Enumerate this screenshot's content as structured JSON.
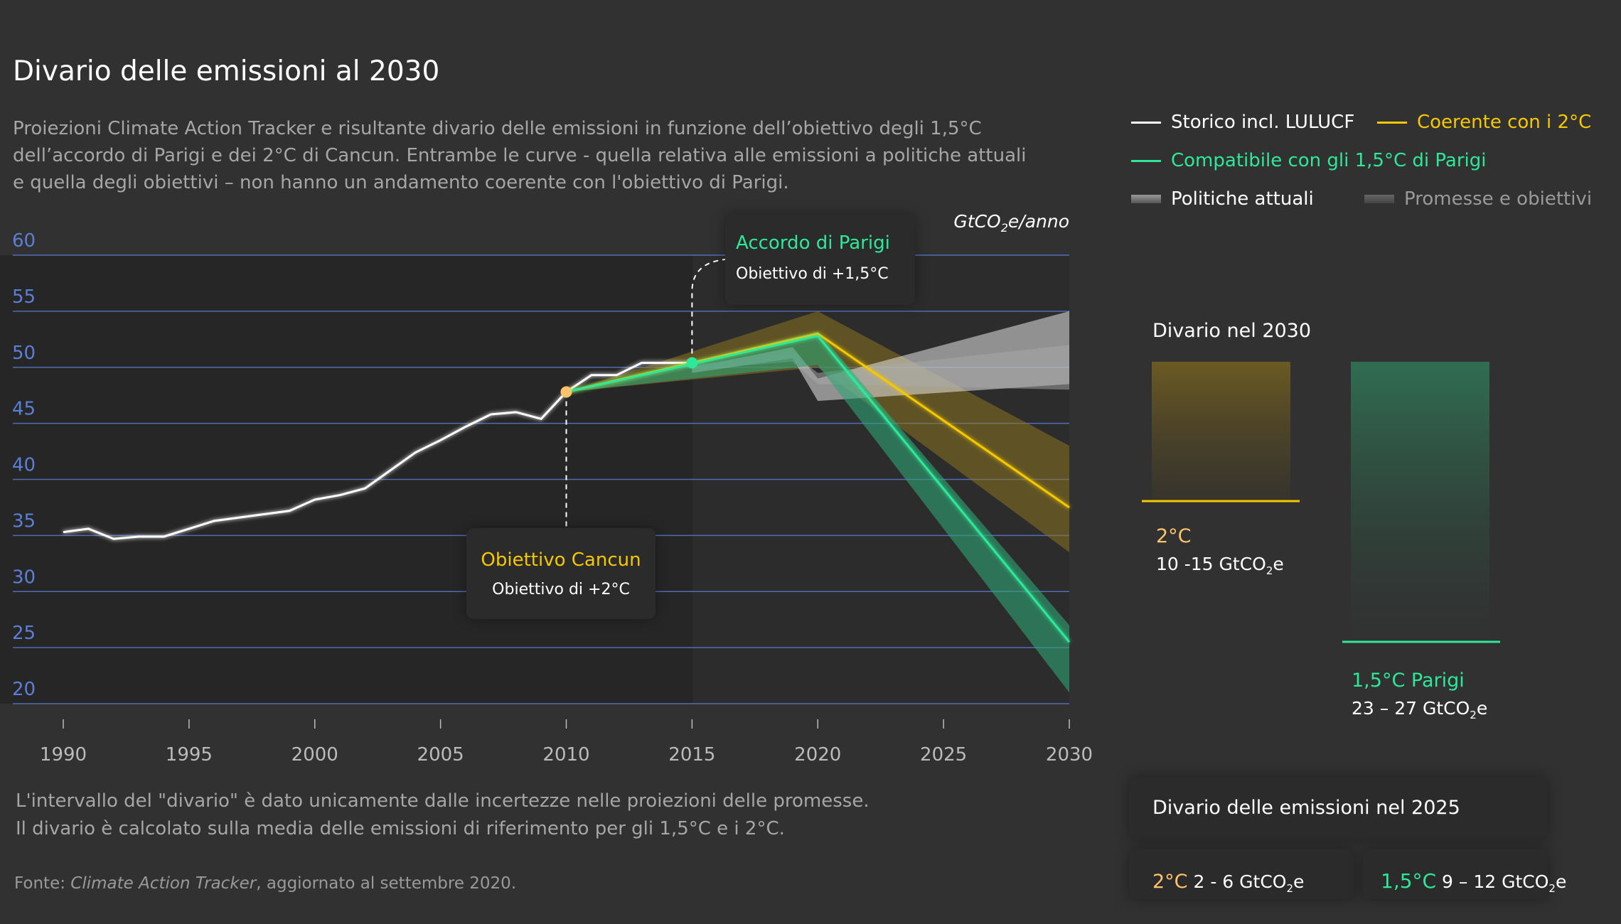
{
  "header": {
    "title": "Divario delle emissioni al 2030",
    "subtitle": [
      "Proiezioni Climate Action Tracker e risultante divario delle emissioni in funzione dell’obiettivo degli 1,5°C",
      "dell’accordo di Parigi e dei 2°C di Cancun. Entrambe le curve - quella relativa alle emissioni a politiche attuali",
      "e quella degli obiettivi – non hanno un andamento coerente con l'obiettivo di Parigi."
    ]
  },
  "legend": {
    "historic": "Storico incl. LULUCF",
    "two_deg": "Coerente con i 2°C",
    "one_five": "Compatibile con gli 1,5°C di Parigi",
    "current": "Politiche attuali",
    "pledges": "Promesse e obiettivi"
  },
  "colors": {
    "historic": "#ffffff",
    "two_deg": "#f5c800",
    "one_five": "#2ee89a",
    "axis": "#5b7fd6",
    "dot_2": "#ffc46b"
  },
  "chart_data": {
    "type": "line",
    "unit": "GtCO₂e/anno",
    "unit_main": "GtCO",
    "unit_sub": "2",
    "unit_tail": "e/anno",
    "xlim": [
      1990,
      2030
    ],
    "ylim": [
      20,
      60
    ],
    "x_ticks": [
      1990,
      1995,
      2000,
      2005,
      2010,
      2015,
      2020,
      2025,
      2030
    ],
    "y_ticks": [
      60,
      55,
      50,
      45,
      40,
      35,
      30,
      25,
      20
    ],
    "grid": true,
    "series": [
      {
        "name": "Storico incl. LULUCF",
        "x": [
          1990,
          1991,
          1992,
          1993,
          1994,
          1995,
          1996,
          1997,
          1998,
          1999,
          2000,
          2001,
          2002,
          2003,
          2004,
          2005,
          2006,
          2007,
          2008,
          2009,
          2010,
          2011,
          2012,
          2013,
          2014,
          2015
        ],
        "values": [
          35.3,
          35.6,
          34.7,
          34.9,
          34.9,
          35.6,
          36.3,
          36.6,
          36.9,
          37.2,
          38.2,
          38.6,
          39.2,
          40.8,
          42.4,
          43.5,
          44.7,
          45.8,
          46.0,
          45.4,
          47.8,
          49.3,
          49.3,
          50.4,
          50.4,
          50.4
        ]
      },
      {
        "name": "Coerente con i 2°C",
        "x": [
          2010,
          2020,
          2030
        ],
        "values": [
          47.8,
          53.0,
          37.5
        ],
        "band_low": [
          47.8,
          50.0,
          33.5
        ],
        "band_high": [
          47.8,
          55.0,
          43.0
        ]
      },
      {
        "name": "Compatibile con gli 1,5°C di Parigi",
        "x": [
          2010,
          2020,
          2030
        ],
        "values": [
          47.8,
          52.8,
          25.5
        ],
        "band_low": [
          47.8,
          50.2,
          21.0
        ],
        "band_high": [
          47.8,
          53.2,
          27.0
        ]
      },
      {
        "name": "Politiche attuali",
        "x": [
          2015,
          2019,
          2020,
          2030
        ],
        "band_low": [
          49.5,
          50.8,
          47.0,
          48.5
        ],
        "band_high": [
          50.0,
          51.8,
          49.0,
          55.0
        ]
      },
      {
        "name": "Promesse e obiettivi",
        "x": [
          2015,
          2019,
          2020,
          2030
        ],
        "band_low": [
          49.8,
          50.5,
          48.5,
          48.0
        ],
        "band_high": [
          50.2,
          51.2,
          49.5,
          52.0
        ]
      }
    ],
    "annotations": [
      {
        "title": "Accordo di Parigi",
        "text": "Obiettivo di +1,5°C",
        "x": 2015,
        "y": 50.4
      },
      {
        "title": "Obiettivo Cancun",
        "text": "Obiettivo di +2°C",
        "x": 2010,
        "y": 47.8
      }
    ]
  },
  "gap2030": {
    "title": "Divario nel 2030",
    "two_label": "2°C",
    "two_value": "10 -15 GtCO",
    "two_min": 10,
    "two_max": 15,
    "one_label": "1,5°C Parigi",
    "one_value": "23 – 27 GtCO",
    "one_min": 23,
    "one_max": 27,
    "sub": "2",
    "tail": "e"
  },
  "notes": [
    "L'intervallo del \"divario\" è dato unicamente dalle incertezze nelle proiezioni delle promesse.",
    "Il divario è calcolato sulla media delle emissioni di riferimento per gli 1,5°C e i 2°C."
  ],
  "source": {
    "prefix": "Fonte: ",
    "name": "Climate Action Tracker",
    "suffix": ", aggiornato al settembre 2020."
  },
  "gap2025": {
    "title": "Divario delle emissioni nel 2025",
    "two_label": "2°C",
    "two_value": " 2 - 6 GtCO",
    "one_label": "1,5°C",
    "one_value": " 9 – 12 GtCO",
    "sub": "2",
    "tail": "e"
  }
}
